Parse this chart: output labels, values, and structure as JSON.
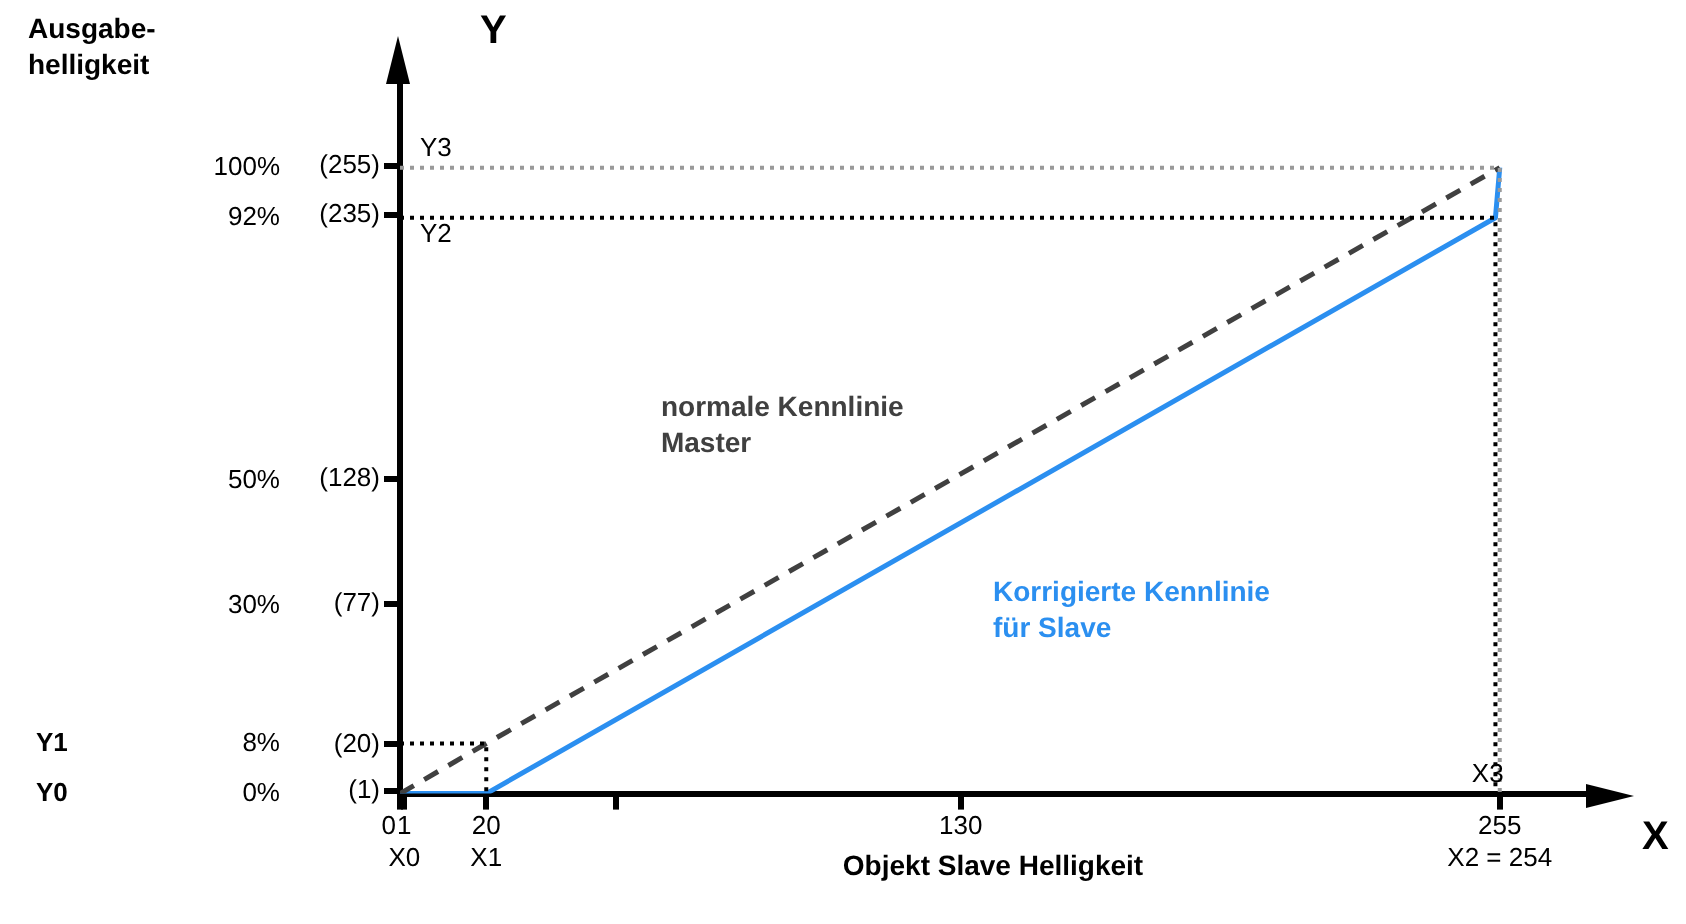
{
  "chart_data": {
    "type": "line",
    "xlabel": "Objekt Slave Helligkeit",
    "ylabel": "Ausgabe-\nhelligkeit",
    "xlim": [
      0,
      275
    ],
    "ylim": [
      0,
      114
    ],
    "y2lim": [
      0,
      290
    ],
    "xticks": [
      {
        "value": 0,
        "label": "0"
      },
      {
        "value": 1,
        "label": "1\nX0"
      },
      {
        "value": 20,
        "label": "20\nX1"
      },
      {
        "value": 50,
        "label": null
      },
      {
        "value": 130,
        "label": "130"
      },
      {
        "value": 255,
        "label": "255\nX2 = 254"
      }
    ],
    "yticks": [
      {
        "value": 0,
        "label": "0%"
      },
      {
        "value": 8,
        "label": "8%"
      },
      {
        "value": 30,
        "label": "30%"
      },
      {
        "value": 50,
        "label": "50%"
      },
      {
        "value": 92,
        "label": "92%"
      },
      {
        "value": 100,
        "label": "100%"
      }
    ],
    "y2ticks": [
      {
        "value": 1,
        "label": "(1)"
      },
      {
        "value": 20,
        "label": "(20)"
      },
      {
        "value": 77,
        "label": "(77)"
      },
      {
        "value": 128,
        "label": "(128)"
      },
      {
        "value": 235,
        "label": "(235)"
      },
      {
        "value": 255,
        "label": "(255)"
      }
    ],
    "grid": false,
    "legend": false,
    "marker": "none",
    "series": [
      {
        "color": "#000000",
        "line_style": "dotted",
        "x": [
          0,
          20,
          20
        ],
        "values": [
          8,
          8,
          0
        ]
      },
      {
        "color": "#000000",
        "line_style": "dotted",
        "x": [
          0,
          254,
          254
        ],
        "values": [
          92,
          92,
          0
        ]
      },
      {
        "color": "#999999",
        "line_style": "dotted",
        "x": [
          0,
          255,
          255
        ],
        "values": [
          100,
          100,
          0
        ]
      },
      {
        "name": "normale Kennlinie\nMaster",
        "color": "#404040",
        "line_style": "dashed",
        "x": [
          0,
          20,
          255
        ],
        "values": [
          0,
          8,
          100
        ]
      },
      {
        "name": "Korrigierte Kennlinie\nfür Slave",
        "color": "#2b8ff0",
        "line_style": "solid",
        "x": [
          0,
          20,
          254,
          255
        ],
        "values": [
          0,
          0,
          92,
          100
        ]
      }
    ],
    "annotations": [
      "Y",
      "X",
      "Y3",
      "Y2",
      "Y1",
      "Y0",
      "X3"
    ]
  }
}
